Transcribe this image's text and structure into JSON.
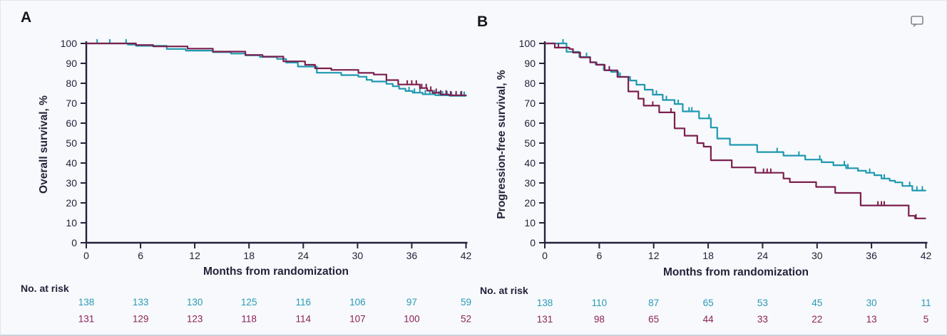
{
  "frame": {
    "background": "#f7f9fc"
  },
  "colors": {
    "axis": "#23233a",
    "teal_curve": "#1f99b0",
    "maroon_curve": "#7b1f4e",
    "teal_text": "#2a9bb5",
    "maroon_text": "#8c2257",
    "comment_icon": "#80858e"
  },
  "panels": [
    {
      "id": "A",
      "letter": "A",
      "ylabel": "Overall survival, %",
      "xlabel": "Months from randomization",
      "at_risk_label": "No. at risk"
    },
    {
      "id": "B",
      "letter": "B",
      "ylabel": "Progression-free survival, %",
      "xlabel": "Months from randomization",
      "at_risk_label": "No. at risk"
    }
  ],
  "chart_data": [
    {
      "type": "line",
      "style": "kaplan-meier-step",
      "panel": "A",
      "title": "",
      "xlabel": "Months from randomization",
      "ylabel": "Overall survival, %",
      "xlim": [
        0,
        42
      ],
      "ylim": [
        0,
        100
      ],
      "xticks": [
        0,
        6,
        12,
        18,
        24,
        30,
        36,
        42
      ],
      "yticks": [
        0,
        10,
        20,
        30,
        40,
        50,
        60,
        70,
        80,
        90,
        100
      ],
      "grid": false,
      "legend": "none",
      "at_risk_label": "No. at risk",
      "series": [
        {
          "name": "teal-arm",
          "color": "#1f99b0",
          "risk_color": "#2a9bb5",
          "steps": [
            [
              0,
              100
            ],
            [
              4.6,
              99.4
            ],
            [
              5.5,
              98.8
            ],
            [
              8.9,
              97.2
            ],
            [
              11,
              96.4
            ],
            [
              14,
              95.6
            ],
            [
              16,
              94.9
            ],
            [
              17.6,
              94
            ],
            [
              19.2,
              93.2
            ],
            [
              21.1,
              92.2
            ],
            [
              22.1,
              90.4
            ],
            [
              23.4,
              88.4
            ],
            [
              25.5,
              85.3
            ],
            [
              28.2,
              84.1
            ],
            [
              30.1,
              83.3
            ],
            [
              31,
              81.7
            ],
            [
              31.6,
              80.9
            ],
            [
              33.2,
              79.7
            ],
            [
              33.9,
              78.5
            ],
            [
              34.6,
              77.3
            ],
            [
              35.3,
              76.1
            ],
            [
              36.1,
              75.3
            ],
            [
              37.2,
              74.5
            ],
            [
              38.6,
              74
            ],
            [
              40.2,
              73.7
            ],
            [
              42,
              73.5
            ]
          ],
          "censor_times": [
            1.2,
            2.6,
            4.4,
            35.7,
            36.3,
            36.9,
            37.5,
            38,
            38.5,
            39,
            39.4,
            39.9,
            40.4,
            40.9,
            41.4,
            41.8
          ],
          "at_risk": [
            138,
            133,
            130,
            125,
            116,
            106,
            97,
            59
          ]
        },
        {
          "name": "maroon-arm",
          "color": "#7b1f4e",
          "risk_color": "#8c2257",
          "steps": [
            [
              0,
              100
            ],
            [
              5.5,
              99.2
            ],
            [
              7.4,
              98.5
            ],
            [
              11.2,
              97.4
            ],
            [
              14,
              95.9
            ],
            [
              17.6,
              94.2
            ],
            [
              19.5,
              93.4
            ],
            [
              21.8,
              91
            ],
            [
              24.2,
              89.3
            ],
            [
              25.3,
              87.5
            ],
            [
              27.1,
              86.7
            ],
            [
              30.1,
              85.2
            ],
            [
              31.8,
              84.4
            ],
            [
              33.2,
              81.6
            ],
            [
              34.5,
              79.4
            ],
            [
              36.9,
              77.6
            ],
            [
              37.7,
              76.3
            ],
            [
              38.3,
              75.2
            ],
            [
              39.2,
              74.4
            ],
            [
              40.1,
              74
            ],
            [
              42,
              73.9
            ]
          ],
          "censor_times": [
            35.5,
            36,
            36.5,
            37.1,
            37.6,
            38.1,
            38.7,
            39.2,
            39.8,
            40.3,
            40.9,
            41.5
          ],
          "at_risk": [
            131,
            129,
            123,
            118,
            114,
            107,
            100,
            52
          ]
        }
      ]
    },
    {
      "type": "line",
      "style": "kaplan-meier-step",
      "panel": "B",
      "title": "",
      "xlabel": "Months from randomization",
      "ylabel": "Progression-free survival, %",
      "xlim": [
        0,
        42
      ],
      "ylim": [
        0,
        100
      ],
      "xticks": [
        0,
        6,
        12,
        18,
        24,
        30,
        36,
        42
      ],
      "yticks": [
        0,
        10,
        20,
        30,
        40,
        50,
        60,
        70,
        80,
        90,
        100
      ],
      "grid": false,
      "legend": "none",
      "at_risk_label": "No. at risk",
      "series": [
        {
          "name": "teal-arm",
          "color": "#1f99b0",
          "risk_color": "#2a9bb5",
          "steps": [
            [
              0,
              100
            ],
            [
              2.4,
              95.8
            ],
            [
              3.8,
              93.2
            ],
            [
              5,
              90.6
            ],
            [
              5.6,
              89.4
            ],
            [
              6.5,
              86.6
            ],
            [
              7.3,
              85.7
            ],
            [
              8.1,
              83.2
            ],
            [
              9.4,
              81.4
            ],
            [
              10.1,
              79.3
            ],
            [
              11,
              76.8
            ],
            [
              11.9,
              74.3
            ],
            [
              13,
              71.6
            ],
            [
              14.3,
              69.6
            ],
            [
              15.2,
              65.9
            ],
            [
              17,
              62.4
            ],
            [
              18.3,
              57.8
            ],
            [
              19,
              52.3
            ],
            [
              20.4,
              49.1
            ],
            [
              23.4,
              45.5
            ],
            [
              26.3,
              43.7
            ],
            [
              28.7,
              41.7
            ],
            [
              30.5,
              40.4
            ],
            [
              31.8,
              38.9
            ],
            [
              33.2,
              37.4
            ],
            [
              34.5,
              36.1
            ],
            [
              35.4,
              35.1
            ],
            [
              36.3,
              33.9
            ],
            [
              37.1,
              32.2
            ],
            [
              38,
              31.1
            ],
            [
              38.6,
              30.3
            ],
            [
              39.4,
              28.5
            ],
            [
              40.5,
              26.2
            ],
            [
              42,
              26.2
            ]
          ],
          "censor_times": [
            2,
            4.6,
            8.3,
            12.3,
            13.4,
            14.7,
            15.9,
            16.2,
            18.1,
            25.6,
            28,
            30.3,
            33,
            33.4,
            35.8,
            37.4,
            40.2,
            41,
            41.6
          ],
          "at_risk": [
            138,
            110,
            87,
            65,
            53,
            45,
            30,
            11
          ]
        },
        {
          "name": "maroon-arm",
          "color": "#7b1f4e",
          "risk_color": "#8c2257",
          "steps": [
            [
              0,
              100
            ],
            [
              1.1,
              97.9
            ],
            [
              2.7,
              97.2
            ],
            [
              3.1,
              95.4
            ],
            [
              3.9,
              93
            ],
            [
              5,
              90.5
            ],
            [
              5.7,
              89.3
            ],
            [
              6.6,
              86.5
            ],
            [
              8,
              83.2
            ],
            [
              9.2,
              75.9
            ],
            [
              10.3,
              72.3
            ],
            [
              10.9,
              68.8
            ],
            [
              12.6,
              65.4
            ],
            [
              14.3,
              57.4
            ],
            [
              15.4,
              53.7
            ],
            [
              16.8,
              50
            ],
            [
              17.5,
              48.2
            ],
            [
              18.3,
              41.4
            ],
            [
              20.6,
              37.8
            ],
            [
              23.2,
              35.1
            ],
            [
              26.3,
              32.2
            ],
            [
              27,
              30.4
            ],
            [
              29.9,
              28
            ],
            [
              32,
              25
            ],
            [
              34.8,
              18.7
            ],
            [
              40.1,
              13.5
            ],
            [
              40.8,
              12.2
            ],
            [
              42,
              12.2
            ]
          ],
          "censor_times": [
            1.5,
            7.1,
            11.9,
            13.9,
            24.1,
            24.5,
            24.9,
            36.7,
            37.1,
            37.4,
            40.9
          ],
          "at_risk": [
            131,
            98,
            65,
            44,
            33,
            22,
            13,
            5
          ]
        }
      ]
    }
  ]
}
